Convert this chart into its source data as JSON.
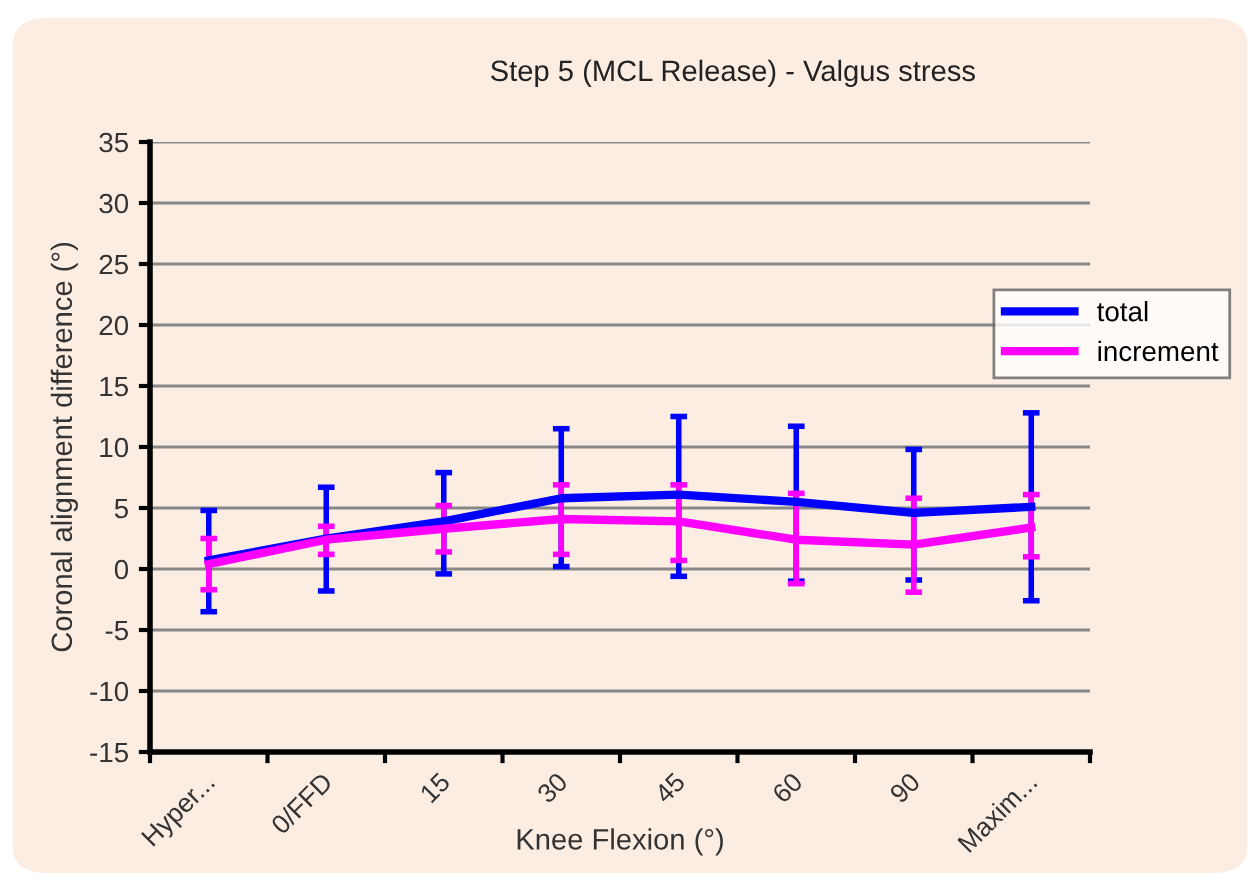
{
  "chart_data": {
    "type": "line",
    "title": "Step 5 (MCL Release) - Valgus stress",
    "xlabel": "Knee Flexion (°)",
    "ylabel": "Coronal alignment difference (°)",
    "categories": [
      "Hyper...",
      "0/FFD",
      "15",
      "30",
      "45",
      "60",
      "90",
      "Maxim..."
    ],
    "series": [
      {
        "name": "total",
        "color": "#0000ff",
        "values": [
          0.7,
          2.5,
          3.9,
          5.8,
          6.1,
          5.5,
          4.6,
          5.1
        ],
        "errors": [
          [
            -3.5,
            4.8
          ],
          [
            -1.8,
            6.7
          ],
          [
            -0.4,
            7.9
          ],
          [
            0.2,
            11.5
          ],
          [
            -0.6,
            12.5
          ],
          [
            -1.0,
            11.7
          ],
          [
            -0.9,
            9.8
          ],
          [
            -2.6,
            12.8
          ]
        ]
      },
      {
        "name": "increment",
        "color": "#ff00ff",
        "values": [
          0.4,
          2.4,
          3.3,
          4.1,
          3.9,
          2.4,
          2.0,
          3.4
        ],
        "errors": [
          [
            -1.7,
            2.5
          ],
          [
            1.2,
            3.5
          ],
          [
            1.4,
            5.2
          ],
          [
            1.2,
            6.9
          ],
          [
            0.7,
            6.9
          ],
          [
            -1.2,
            6.2
          ],
          [
            -1.9,
            5.8
          ],
          [
            1.0,
            6.1
          ]
        ]
      }
    ],
    "ylim": [
      -15,
      35
    ],
    "yticks": [
      -15,
      -10,
      -5,
      0,
      5,
      10,
      15,
      20,
      25,
      30,
      35
    ],
    "grid": "y",
    "legend": "right",
    "marker": "none",
    "line_style": "solid"
  }
}
